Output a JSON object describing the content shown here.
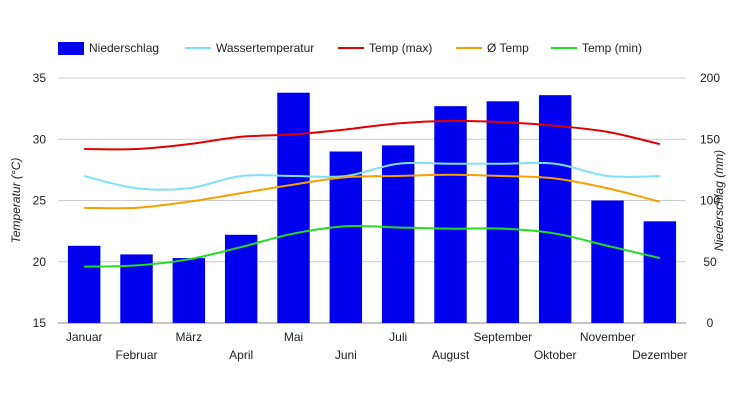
{
  "chart_data": {
    "type": "bar+line",
    "categories": [
      "Januar",
      "Februar",
      "März",
      "April",
      "Mai",
      "Juni",
      "Juli",
      "August",
      "September",
      "Oktober",
      "November",
      "Dezember"
    ],
    "bars": {
      "name": "Niederschlag",
      "color": "#0000ee",
      "axis": "right",
      "values": [
        63,
        56,
        53,
        72,
        188,
        140,
        145,
        177,
        181,
        186,
        100,
        83
      ]
    },
    "series": [
      {
        "name": "Wassertemperatur",
        "color": "#80e0f8",
        "axis": "left",
        "values": [
          27,
          26,
          26,
          27,
          27,
          27,
          28,
          28,
          28,
          28,
          27,
          27
        ]
      },
      {
        "name": "Temp (max)",
        "color": "#e00000",
        "axis": "left",
        "values": [
          29.2,
          29.2,
          29.6,
          30.2,
          30.4,
          30.8,
          31.3,
          31.5,
          31.4,
          31.1,
          30.6,
          29.6
        ]
      },
      {
        "name": "Ø Temp",
        "color": "#f5a000",
        "axis": "left",
        "values": [
          24.4,
          24.4,
          24.9,
          25.6,
          26.3,
          26.9,
          27.0,
          27.1,
          27.0,
          26.8,
          26.0,
          24.9
        ]
      },
      {
        "name": "Temp (min)",
        "color": "#22dd22",
        "axis": "left",
        "values": [
          19.6,
          19.7,
          20.2,
          21.2,
          22.3,
          22.9,
          22.8,
          22.7,
          22.7,
          22.3,
          21.3,
          20.3
        ]
      }
    ],
    "y_left": {
      "label": "Temperatur (°C)",
      "min": 15,
      "max": 35,
      "ticks": [
        15,
        20,
        25,
        30,
        35
      ]
    },
    "y_right": {
      "label": "Niederschlag (mm)",
      "min": 0,
      "max": 200,
      "ticks": [
        0,
        50,
        100,
        150,
        200
      ]
    },
    "grid": true,
    "legend_position": "top-left"
  }
}
